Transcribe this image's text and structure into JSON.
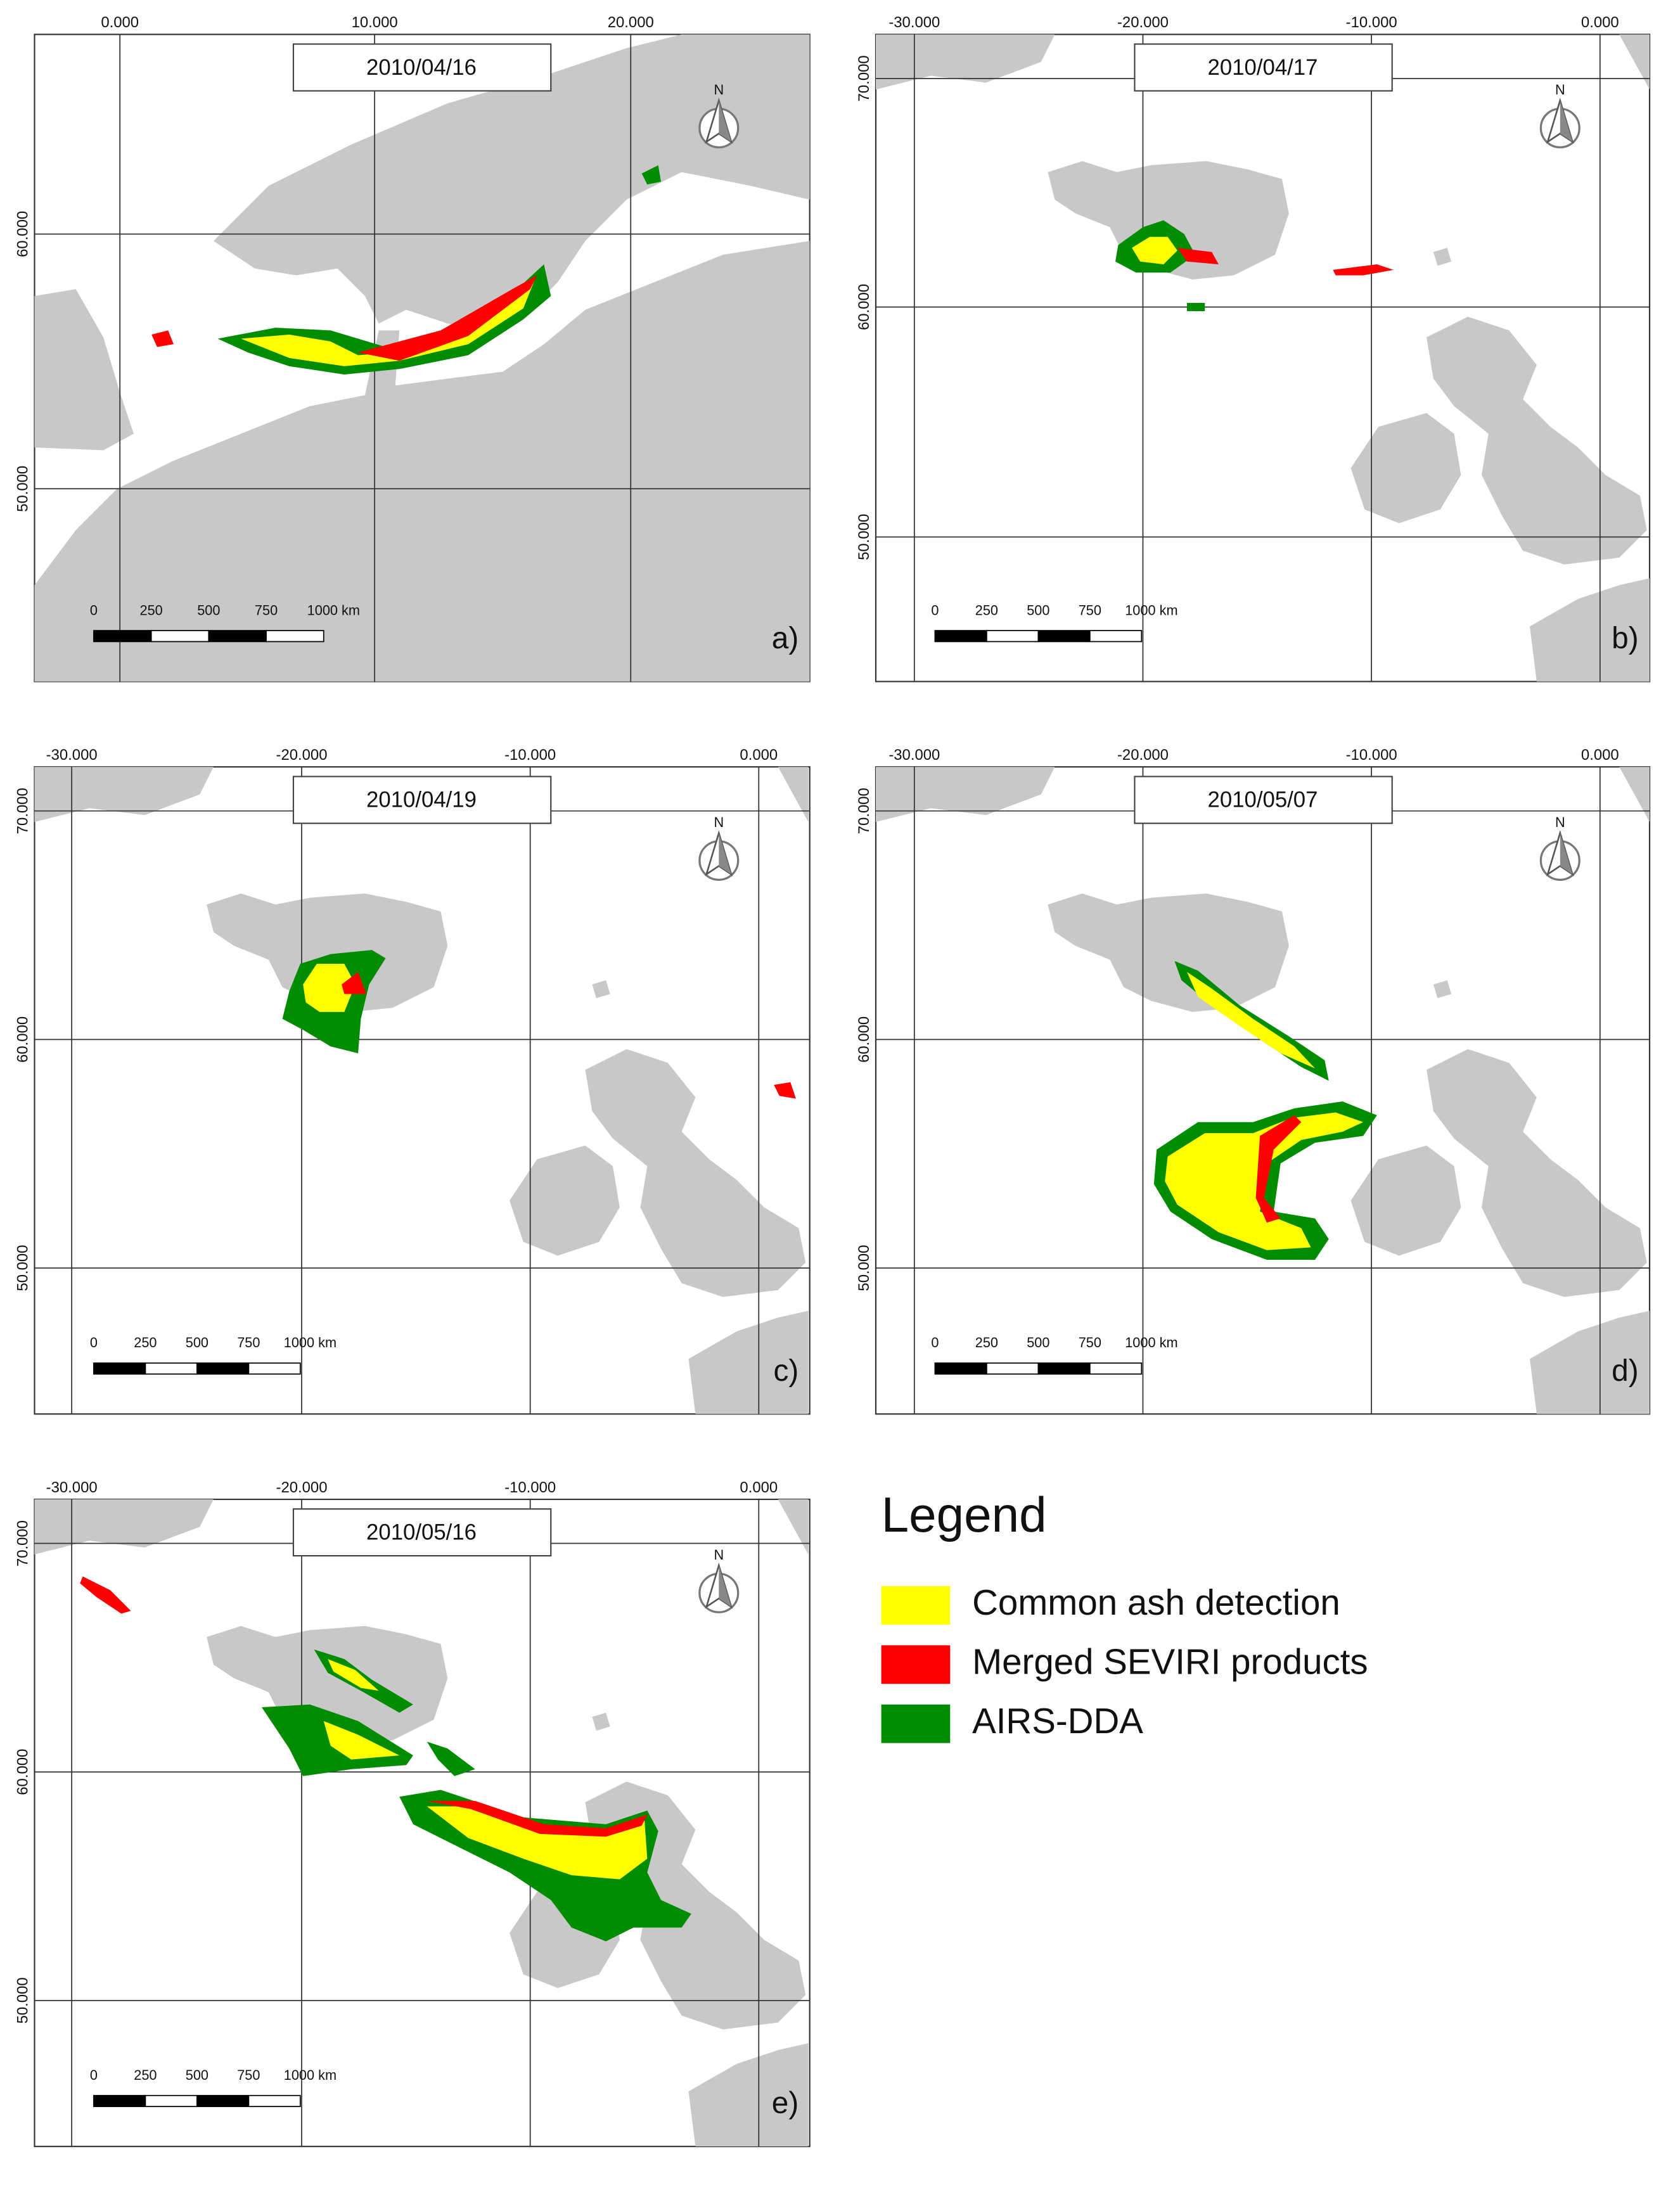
{
  "panels": [
    {
      "date": "2010/04/16",
      "letter": "a)",
      "x_ticks": [
        "0.000",
        "10.000",
        "20.000"
      ],
      "y_ticks": [
        "60.000",
        "50.000"
      ],
      "scale": [
        "0",
        "250",
        "500",
        "750",
        "1000 km"
      ],
      "north": "N"
    },
    {
      "date": "2010/04/17",
      "letter": "b)",
      "x_ticks": [
        "-30.000",
        "-20.000",
        "-10.000",
        "0.000"
      ],
      "y_ticks": [
        "70.000",
        "60.000",
        "50.000"
      ],
      "scale": [
        "0",
        "250",
        "500",
        "750",
        "1000 km"
      ],
      "north": "N"
    },
    {
      "date": "2010/04/19",
      "letter": "c)",
      "x_ticks": [
        "-30.000",
        "-20.000",
        "-10.000",
        "0.000"
      ],
      "y_ticks": [
        "70.000",
        "60.000",
        "50.000"
      ],
      "scale": [
        "0",
        "250",
        "500",
        "750",
        "1000 km"
      ],
      "north": "N"
    },
    {
      "date": "2010/05/07",
      "letter": "d)",
      "x_ticks": [
        "-30.000",
        "-20.000",
        "-10.000",
        "0.000"
      ],
      "y_ticks": [
        "70.000",
        "60.000",
        "50.000"
      ],
      "scale": [
        "0",
        "250",
        "500",
        "750",
        "1000 km"
      ],
      "north": "N"
    },
    {
      "date": "2010/05/16",
      "letter": "e)",
      "x_ticks": [
        "-30.000",
        "-20.000",
        "-10.000",
        "0.000"
      ],
      "y_ticks": [
        "70.000",
        "60.000",
        "50.000"
      ],
      "scale": [
        "0",
        "250",
        "500",
        "750",
        "1000 km"
      ],
      "north": "N"
    }
  ],
  "legend": {
    "title": "Legend",
    "items": [
      "Common ash detection",
      "Merged SEVIRI products",
      "AIRS-DDA"
    ]
  }
}
